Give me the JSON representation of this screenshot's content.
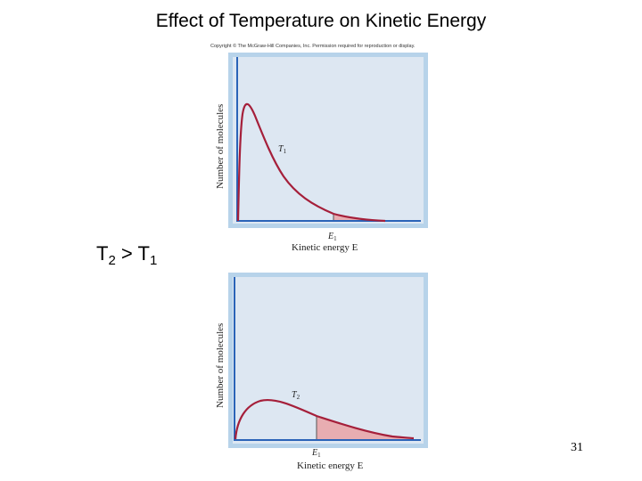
{
  "slide": {
    "title": "Effect of Temperature on Kinetic Energy",
    "relation": {
      "t2": "T",
      "t2_sub": "2",
      "op": ">",
      "t1": "T",
      "t1_sub": "1"
    },
    "slide_number": "31",
    "copyright": "Copyright © The McGraw-Hill Companies, Inc. Permission required for reproduction or display."
  },
  "graphs": [
    {
      "ylabel": "Number of molecules",
      "xlabel": "Kinetic energy E",
      "curve_label": "T",
      "curve_sub": "1",
      "threshold_label": "E",
      "threshold_sub": "1"
    },
    {
      "ylabel": "Number of molecules",
      "xlabel": "Kinetic energy E",
      "curve_label": "T",
      "curve_sub": "2",
      "threshold_label": "E",
      "threshold_sub": "1"
    }
  ],
  "colors": {
    "curve": "#a51f3a",
    "shaded_area": "#e9a6aa",
    "axis": "#2a63b8",
    "panel_background": "#dde7f2",
    "panel_border": "#b7d3ea"
  }
}
